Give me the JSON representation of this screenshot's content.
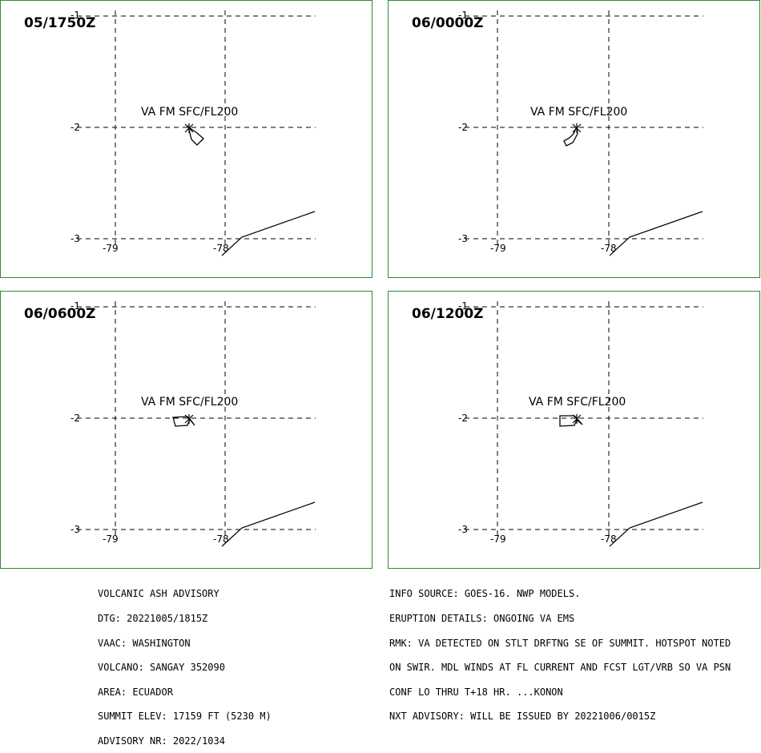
{
  "map_style": {
    "frame_color": "#2e8b2e",
    "grid_color": "#000000",
    "line_color": "#000000"
  },
  "axes": {
    "lat_ticks": [
      "-1",
      "-2",
      "-3"
    ],
    "lon_ticks": [
      "-79",
      "-78"
    ]
  },
  "panels": [
    {
      "time_label": "05/1750Z",
      "ash_label": "VA FM SFC/FL200",
      "ash_shape": "plume-southeast"
    },
    {
      "time_label": "06/0000Z",
      "ash_label": "VA FM SFC/FL200",
      "ash_shape": "plume-south"
    },
    {
      "time_label": "06/0600Z",
      "ash_label": "VA FM SFC/FL200",
      "ash_shape": "plume-west"
    },
    {
      "time_label": "06/1200Z",
      "ash_label": "VA FM SFC/FL200",
      "ash_shape": "plume-west"
    }
  ],
  "advisory_left": [
    "VOLCANIC ASH ADVISORY",
    "DTG: 20221005/1815Z",
    "VAAC: WASHINGTON",
    "VOLCANO: SANGAY 352090",
    "AREA: ECUADOR",
    "SUMMIT ELEV: 17159 FT (5230 M)",
    "ADVISORY NR: 2022/1034"
  ],
  "advisory_right": [
    "INFO SOURCE: GOES-16. NWP MODELS.",
    "ERUPTION DETAILS: ONGOING VA EMS",
    "RMK: VA DETECTED ON STLT DRFTNG SE OF SUMMIT. HOTSPOT NOTED",
    "ON SWIR. MDL WINDS AT FL CURRENT AND FCST LGT/VRB SO VA PSN",
    "CONF LO THRU T+18 HR. ...KONON",
    "NXT ADVISORY: WILL BE ISSUED BY 20221006/0015Z"
  ]
}
